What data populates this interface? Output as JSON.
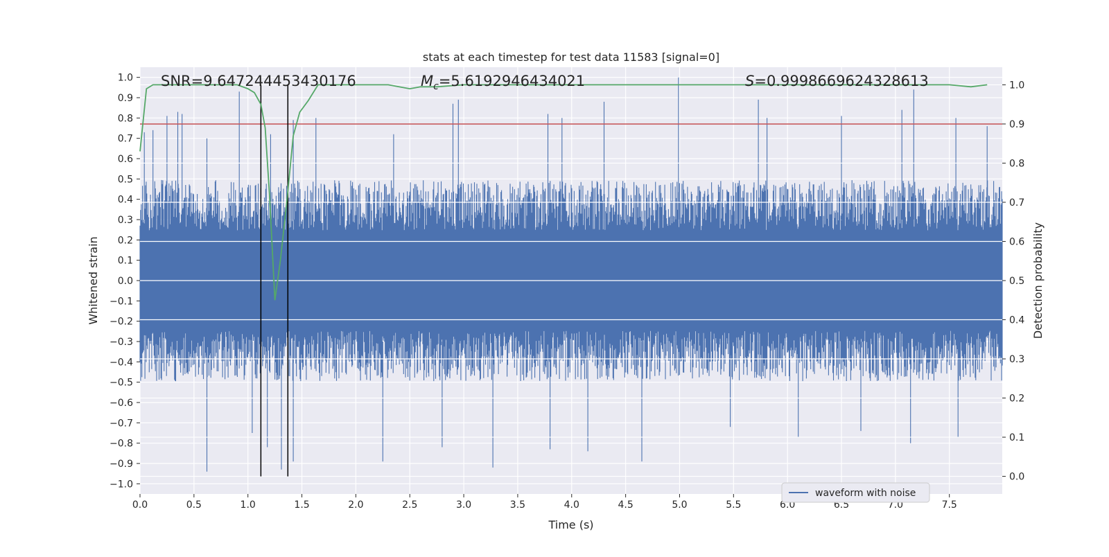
{
  "chart_data": {
    "type": "line",
    "title": "stats at each timestep for test data 11583 [signal=0]",
    "xlabel": "Time (s)",
    "ylabel": "Whitened strain",
    "y2label": "Detection probability",
    "xlim": [
      0.0,
      7.99
    ],
    "ylim": [
      -1.05,
      1.05
    ],
    "y2lim": [
      -0.045,
      1.045
    ],
    "xticks": [
      0.0,
      0.5,
      1.0,
      1.5,
      2.0,
      2.5,
      3.0,
      3.5,
      4.0,
      4.5,
      5.0,
      5.5,
      6.0,
      6.5,
      7.0,
      7.5
    ],
    "yticks": [
      -1.0,
      -0.9,
      -0.8,
      -0.7,
      -0.6,
      -0.5,
      -0.4,
      -0.3,
      -0.2,
      -0.1,
      0.0,
      0.1,
      0.2,
      0.3,
      0.4,
      0.5,
      0.6,
      0.7,
      0.8,
      0.9,
      1.0
    ],
    "y2ticks": [
      0.0,
      0.1,
      0.2,
      0.3,
      0.4,
      0.5,
      0.6,
      0.7,
      0.8,
      0.9,
      1.0
    ],
    "grid": true,
    "legend": {
      "placement": "lower-right",
      "entries": [
        "waveform with noise"
      ]
    },
    "annotations": {
      "snr": "SNR=9.647244453430176",
      "mc_symbol": "M",
      "mc_sub": "c",
      "mc_value": "=5.6192946434021",
      "s_symbol": "S",
      "s_value": "=0.9998669624328613"
    },
    "threshold_prob": 0.9,
    "vlines_x": [
      1.12,
      1.37
    ],
    "waveform": {
      "name": "waveform with noise",
      "color": "#4c72b0",
      "x_range": [
        0.0,
        7.99
      ],
      "typical_upper_envelope": 0.45,
      "typical_lower_envelope": -0.45,
      "peaks": [
        {
          "x": 0.04,
          "y": 0.73
        },
        {
          "x": 0.12,
          "y": 0.74
        },
        {
          "x": 0.25,
          "y": 0.81
        },
        {
          "x": 0.35,
          "y": 0.83
        },
        {
          "x": 0.39,
          "y": 0.82
        },
        {
          "x": 0.62,
          "y": 0.7
        },
        {
          "x": 0.92,
          "y": 0.93
        },
        {
          "x": 1.21,
          "y": 0.72
        },
        {
          "x": 1.42,
          "y": 0.79
        },
        {
          "x": 1.63,
          "y": 0.8
        },
        {
          "x": 2.35,
          "y": 0.72
        },
        {
          "x": 2.9,
          "y": 0.87
        },
        {
          "x": 2.95,
          "y": 0.89
        },
        {
          "x": 3.78,
          "y": 0.82
        },
        {
          "x": 3.91,
          "y": 0.8
        },
        {
          "x": 4.3,
          "y": 0.88
        },
        {
          "x": 4.99,
          "y": 1.0
        },
        {
          "x": 5.73,
          "y": 0.89
        },
        {
          "x": 5.81,
          "y": 0.8
        },
        {
          "x": 6.5,
          "y": 0.81
        },
        {
          "x": 7.06,
          "y": 0.84
        },
        {
          "x": 7.17,
          "y": 0.94
        },
        {
          "x": 7.56,
          "y": 0.8
        },
        {
          "x": 7.85,
          "y": 0.76
        }
      ],
      "troughs": [
        {
          "x": 0.62,
          "y": -0.94
        },
        {
          "x": 1.04,
          "y": -0.75
        },
        {
          "x": 1.18,
          "y": -0.82
        },
        {
          "x": 1.31,
          "y": -0.93
        },
        {
          "x": 1.42,
          "y": -0.89
        },
        {
          "x": 2.25,
          "y": -0.89
        },
        {
          "x": 2.8,
          "y": -0.82
        },
        {
          "x": 3.27,
          "y": -0.92
        },
        {
          "x": 3.8,
          "y": -0.83
        },
        {
          "x": 4.15,
          "y": -0.84
        },
        {
          "x": 4.65,
          "y": -0.89
        },
        {
          "x": 5.47,
          "y": -0.72
        },
        {
          "x": 6.1,
          "y": -0.77
        },
        {
          "x": 6.68,
          "y": -0.74
        },
        {
          "x": 7.14,
          "y": -0.8
        },
        {
          "x": 7.58,
          "y": -0.77
        }
      ]
    },
    "probability": {
      "name": "detection probability",
      "color": "#55a868",
      "x": [
        0.0,
        0.06,
        0.12,
        0.3,
        0.6,
        0.9,
        1.0,
        1.06,
        1.12,
        1.16,
        1.2,
        1.25,
        1.3,
        1.36,
        1.42,
        1.48,
        1.56,
        1.65,
        1.8,
        2.0,
        2.3,
        2.5,
        2.6,
        2.75,
        3.0,
        3.5,
        4.0,
        5.0,
        6.0,
        7.0,
        7.5,
        7.7,
        7.85
      ],
      "y": [
        0.83,
        0.99,
        1.0,
        1.0,
        1.0,
        1.0,
        0.99,
        0.98,
        0.95,
        0.89,
        0.72,
        0.45,
        0.55,
        0.7,
        0.87,
        0.93,
        0.96,
        1.0,
        1.0,
        1.0,
        1.0,
        0.99,
        0.995,
        0.995,
        1.0,
        1.0,
        1.0,
        1.0,
        1.0,
        1.0,
        1.0,
        0.995,
        1.0
      ]
    }
  }
}
